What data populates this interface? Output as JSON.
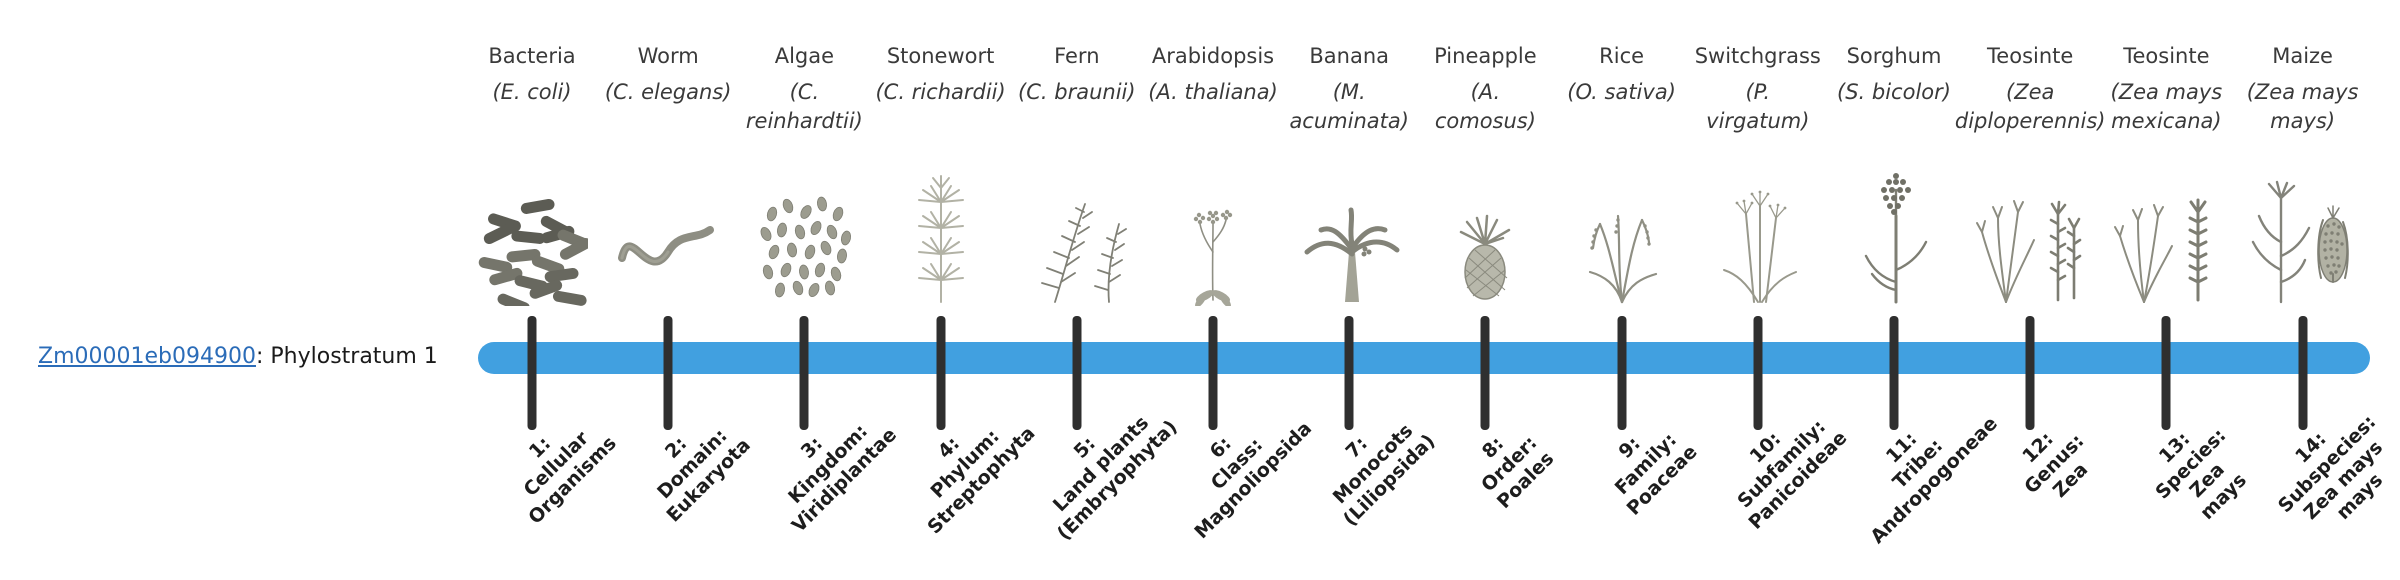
{
  "gene": {
    "id": "Zm00001eb094900",
    "suffix": ": Phylostratum 1"
  },
  "colors": {
    "bar": "#41a0e0",
    "tick": "#2f2f2f",
    "link": "#2b6cb8"
  },
  "phylostrata": [
    {
      "index": 1,
      "organism": "Bacteria",
      "scientific": "(E. coli)",
      "icon": "bacteria-icon",
      "stage": "1:\nCellular\nOrganisms"
    },
    {
      "index": 2,
      "organism": "Worm",
      "scientific": "(C. elegans)",
      "icon": "worm-icon",
      "stage": "2:\nDomain:\nEukaryota"
    },
    {
      "index": 3,
      "organism": "Algae",
      "scientific": "(C.\nreinhardtii)",
      "icon": "algae-icon",
      "stage": "3:\nKingdom:\nViridiplantae"
    },
    {
      "index": 4,
      "organism": "Stonewort",
      "scientific": "(C. richardii)",
      "icon": "stonewort-icon",
      "stage": "4:\nPhylum:\nStreptophyta"
    },
    {
      "index": 5,
      "organism": "Fern",
      "scientific": "(C. braunii)",
      "icon": "fern-icon",
      "stage": "5:\nLand plants\n(Embryophyta)"
    },
    {
      "index": 6,
      "organism": "Arabidopsis",
      "scientific": "(A. thaliana)",
      "icon": "arabidopsis-icon",
      "stage": "6:\nClass:\nMagnoliopsida"
    },
    {
      "index": 7,
      "organism": "Banana",
      "scientific": "(M.\nacuminata)",
      "icon": "banana-icon",
      "stage": "7:\nMonocots\n(Liliopsida)"
    },
    {
      "index": 8,
      "organism": "Pineapple",
      "scientific": "(A.\ncomosus)",
      "icon": "pineapple-icon",
      "stage": "8:\nOrder:\nPoales"
    },
    {
      "index": 9,
      "organism": "Rice",
      "scientific": "(O. sativa)",
      "icon": "rice-icon",
      "stage": "9:\nFamily:\nPoaceae"
    },
    {
      "index": 10,
      "organism": "Switchgrass",
      "scientific": "(P.\nvirgatum)",
      "icon": "switchgrass-icon",
      "stage": "10:\nSubfamily:\nPanicoideae"
    },
    {
      "index": 11,
      "organism": "Sorghum",
      "scientific": "(S. bicolor)",
      "icon": "sorghum-icon",
      "stage": "11:\nTribe:\nAndropogoneae"
    },
    {
      "index": 12,
      "organism": "Teosinte",
      "scientific": "(Zea\ndiploperennis)",
      "icon": "teosinte-diploperennis-icon",
      "stage": "12:\nGenus:\nZea"
    },
    {
      "index": 13,
      "organism": "Teosinte",
      "scientific": "(Zea mays\nmexicana)",
      "icon": "teosinte-mexicana-icon",
      "stage": "13:\nSpecies:\nZea\nmays"
    },
    {
      "index": 14,
      "organism": "Maize",
      "scientific": "(Zea mays\nmays)",
      "icon": "maize-icon",
      "stage": "14:\nSubspecies:\nZea mays\nmays"
    }
  ]
}
